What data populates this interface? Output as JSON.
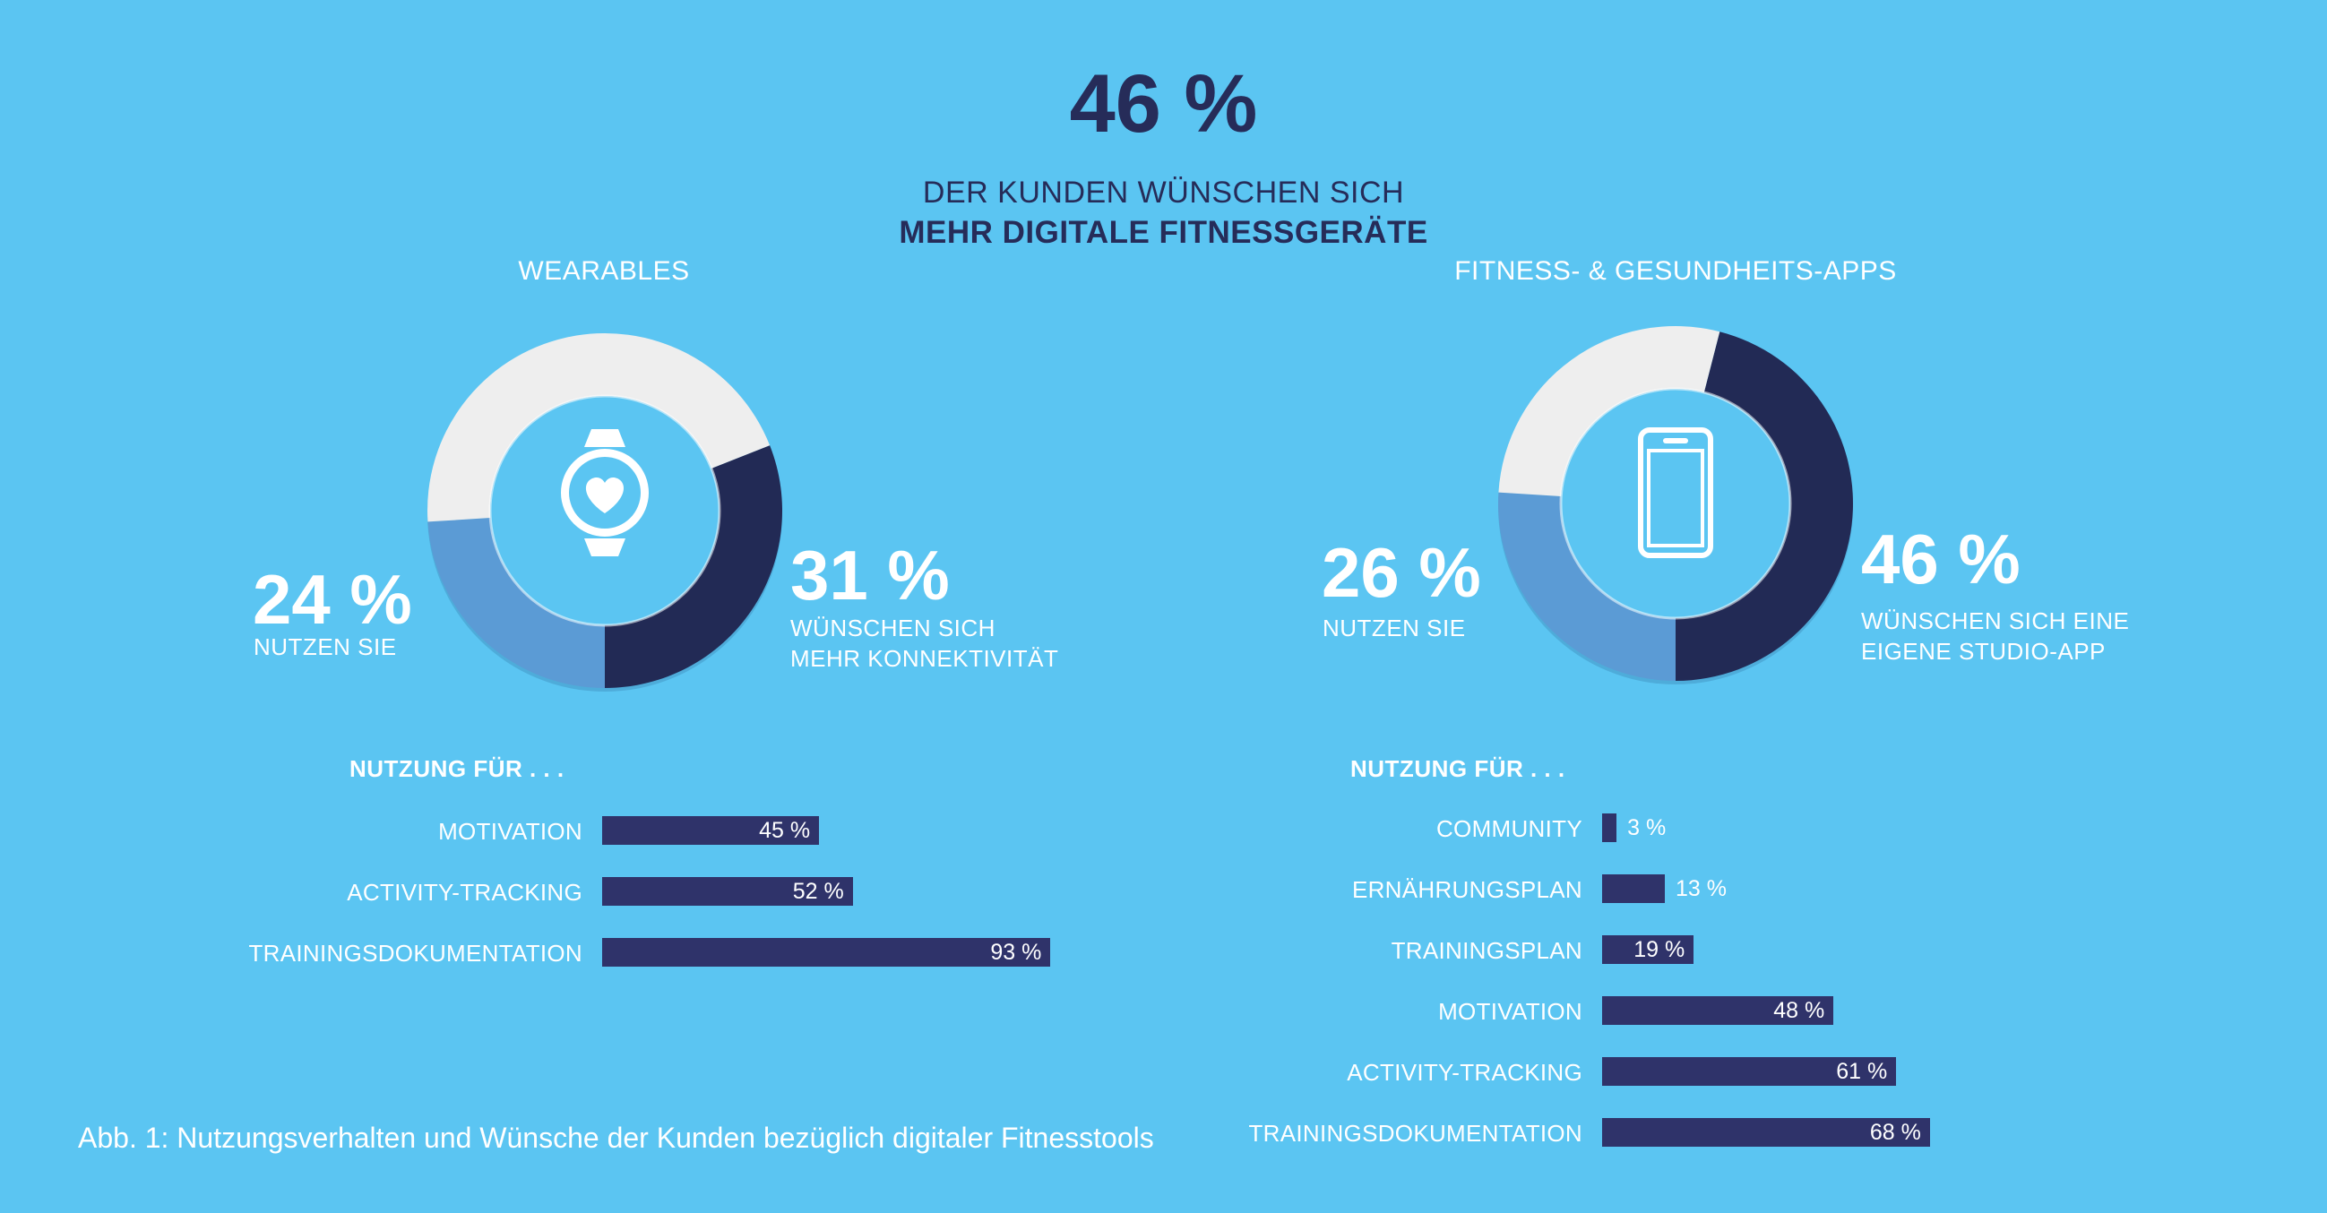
{
  "header": {
    "big": "46 %",
    "line1": "DER KUNDEN WÜNSCHEN SICH",
    "line2": "MEHR DIGITALE FITNESSGERÄTE"
  },
  "wearables": {
    "title": "WEARABLES",
    "left_pct": "24 %",
    "left_label": "NUTZEN SIE",
    "right_pct": "31 %",
    "right_label_1": "WÜNSCHEN SICH",
    "right_label_2": "MEHR KONNEKTIVITÄT",
    "icon": "smartwatch-heart-icon"
  },
  "apps": {
    "title": "FITNESS- & GESUNDHEITS-APPS",
    "left_pct": "26 %",
    "left_label": "NUTZEN SIE",
    "right_pct": "46 %",
    "right_label_1": "WÜNSCHEN SICH EINE",
    "right_label_2": "EIGENE STUDIO-APP",
    "icon": "smartphone-icon"
  },
  "usage_left_heading": "NUTZUNG FÜR . . .",
  "usage_right_heading": "NUTZUNG FÜR . . .",
  "caption": "Abb. 1: Nutzungsverhalten und Wünsche der Kunden bezüglich digitaler Fitnesstools",
  "colors": {
    "background": "#5bc5f2",
    "navy": "#262c59",
    "bar": "#2f336a",
    "donut_dark": "#222a55",
    "donut_mid": "#5b9bd5",
    "donut_light": "#eeeeee"
  },
  "chart_data": [
    {
      "type": "pie",
      "subtype": "donut",
      "title": "WEARABLES",
      "segments": [
        {
          "label": "31 %",
          "value": 31,
          "color": "#222a55"
        },
        {
          "label": "24 %",
          "value": 24,
          "color": "#5b9bd5"
        },
        {
          "label": "",
          "value": 45,
          "color": "#eeeeee"
        }
      ]
    },
    {
      "type": "pie",
      "subtype": "donut",
      "title": "FITNESS- & GESUNDHEITS-APPS",
      "segments": [
        {
          "label": "46 %",
          "value": 46,
          "color": "#222a55"
        },
        {
          "label": "26 %",
          "value": 26,
          "color": "#5b9bd5"
        },
        {
          "label": "",
          "value": 28,
          "color": "#eeeeee"
        }
      ]
    },
    {
      "type": "bar",
      "orientation": "horizontal",
      "title": "NUTZUNG FÜR . . .",
      "categories": [
        "MOTIVATION",
        "ACTIVITY-TRACKING",
        "TRAININGSDOKUMENTATION"
      ],
      "values": [
        45,
        52,
        93
      ],
      "value_labels": [
        "45 %",
        "52 %",
        "93 %"
      ],
      "xlim": [
        0,
        100
      ]
    },
    {
      "type": "bar",
      "orientation": "horizontal",
      "title": "NUTZUNG FÜR . . .",
      "categories": [
        "COMMUNITY",
        "ERNÄHRUNGSPLAN",
        "TRAININGSPLAN",
        "MOTIVATION",
        "ACTIVITY-TRACKING",
        "TRAININGSDOKUMENTATION"
      ],
      "values": [
        3,
        13,
        19,
        48,
        61,
        68
      ],
      "value_labels": [
        "3 %",
        "13 %",
        "19 %",
        "48 %",
        "61 %",
        "68 %"
      ],
      "xlim": [
        0,
        100
      ]
    }
  ]
}
